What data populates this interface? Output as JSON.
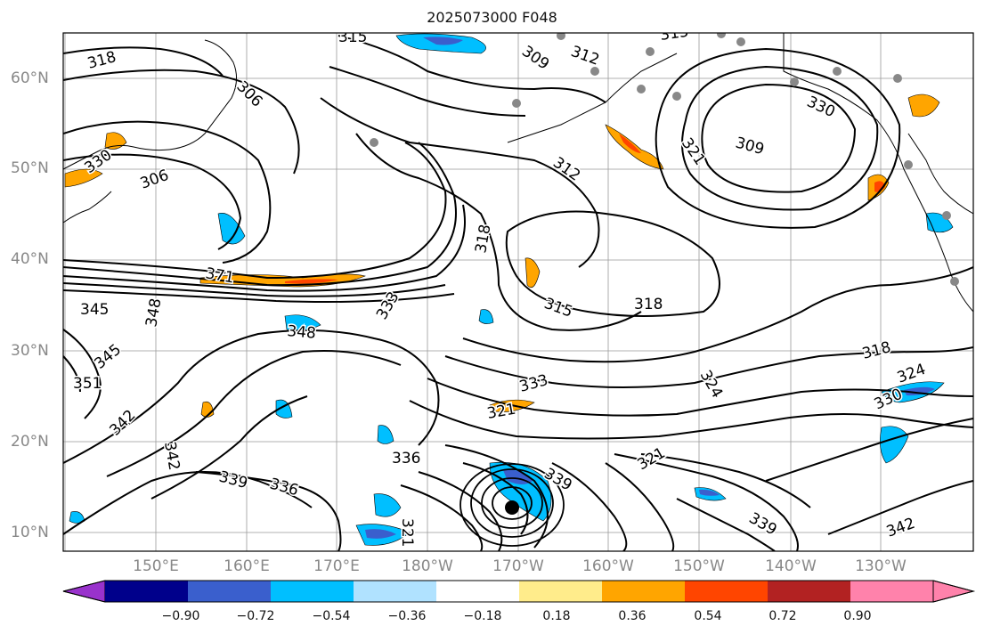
{
  "title": "2025073000 F048",
  "lat_labels": [
    "60°N",
    "50°N",
    "40°N",
    "30°N",
    "20°N",
    "10°N"
  ],
  "lon_labels": [
    "150°E",
    "160°E",
    "170°E",
    "180°W",
    "170°W",
    "160°W",
    "150°W",
    "140°W",
    "130°W"
  ],
  "contour_labels": [
    "315",
    "318",
    "306",
    "309",
    "312",
    "315",
    "330",
    "321",
    "330",
    "306",
    "312",
    "309",
    "318",
    "315",
    "318",
    "371",
    "345",
    "348",
    "333",
    "348",
    "345",
    "351",
    "342",
    "342",
    "333",
    "321",
    "324",
    "318",
    "330",
    "324",
    "339",
    "336",
    "336",
    "321",
    "339",
    "321",
    "339",
    "342"
  ],
  "colorbar": {
    "ticks": [
      "−0.90",
      "−0.72",
      "−0.54",
      "−0.36",
      "−0.18",
      "0.18",
      "0.36",
      "0.54",
      "0.72",
      "0.90"
    ],
    "colors": [
      "#9932CC",
      "#00008B",
      "#3A5FCD",
      "#00BFFF",
      "#B0E2FF",
      "#FFFFFF",
      "#FFEC8B",
      "#FFA500",
      "#FF4500",
      "#B22222",
      "#FF82AB",
      "#FF82AB"
    ]
  },
  "storm_marker": "tropical-cyclone-center",
  "chart_data": {
    "type": "contour",
    "title": "2025073000 F048",
    "lat_range": [
      "8°N",
      "65°N"
    ],
    "lon_range": [
      "140°E",
      "120°W"
    ],
    "contour_values": [
      306,
      309,
      312,
      315,
      318,
      321,
      324,
      330,
      333,
      336,
      339,
      342,
      345,
      348,
      351,
      371
    ],
    "fill_levels": [
      -0.9,
      -0.72,
      -0.54,
      -0.36,
      -0.18,
      0.18,
      0.36,
      0.54,
      0.72,
      0.9
    ]
  }
}
